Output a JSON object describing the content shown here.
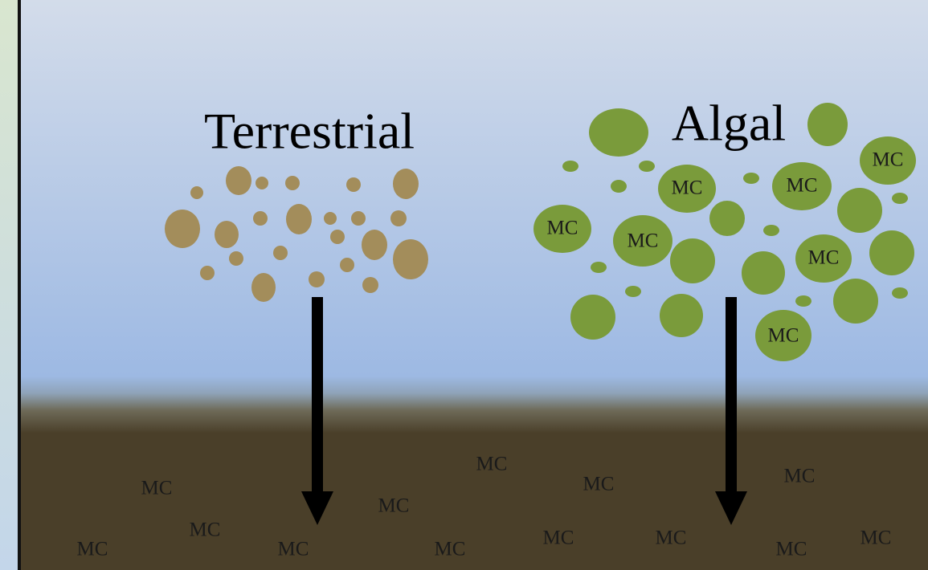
{
  "labels": {
    "terrestrial": "Terrestrial",
    "algal": "Algal"
  },
  "algal_mc": [
    "MC",
    "MC",
    "MC",
    "MC",
    "MC",
    "MC",
    "MC"
  ],
  "sediment_mc": [
    "MC",
    "MC",
    "MC",
    "MC",
    "MC",
    "MC",
    "MC",
    "MC",
    "MC",
    "MC",
    "MC",
    "MC",
    "MC"
  ]
}
